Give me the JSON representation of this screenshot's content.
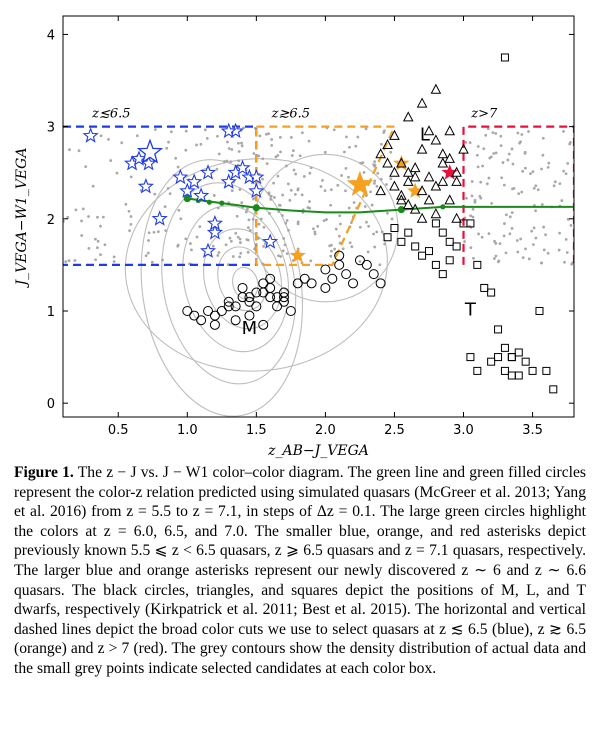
{
  "chart_data": {
    "type": "scatter",
    "xlabel": "z_AB−J_VEGA",
    "ylabel": "J_VEGA−W1_VEGA",
    "xlim": [
      0.1,
      3.8
    ],
    "ylim": [
      -0.15,
      4.2
    ],
    "xticks": [
      "0.5",
      "1.0",
      "1.5",
      "2.0",
      "2.5",
      "3.0",
      "3.5"
    ],
    "yticks": [
      "0",
      "1",
      "2",
      "3",
      "4"
    ],
    "box_labels": [
      {
        "text": "z≲6.5",
        "x": 0.45,
        "y": 3.1
      },
      {
        "text": "z≳6.5",
        "x": 1.75,
        "y": 3.1
      },
      {
        "text": "z>7",
        "x": 3.15,
        "y": 3.1
      }
    ],
    "dwarf_labels": [
      {
        "text": "L",
        "x": 2.72,
        "y": 2.85
      },
      {
        "text": "M",
        "x": 1.45,
        "y": 0.75
      },
      {
        "text": "T",
        "x": 3.05,
        "y": 0.95
      }
    ],
    "color_cuts": [
      {
        "name": "blue",
        "color": "#1f3be8",
        "points": [
          [
            0.1,
            3.0
          ],
          [
            1.5,
            3.0
          ],
          [
            1.5,
            1.5
          ],
          [
            0.1,
            1.5
          ]
        ]
      },
      {
        "name": "orange",
        "color": "#f5a020",
        "points": [
          [
            1.5,
            3.0
          ],
          [
            2.5,
            3.0
          ],
          [
            2.05,
            1.5
          ],
          [
            1.5,
            1.5
          ],
          [
            1.5,
            3.0
          ]
        ]
      },
      {
        "name": "red",
        "color": "#e8103a",
        "points": [
          [
            3.0,
            1.5
          ],
          [
            3.0,
            3.0
          ],
          [
            3.8,
            3.0
          ],
          [
            3.8,
            1.5
          ]
        ]
      }
    ],
    "color_z_relation": {
      "color": "#1a8a1a",
      "line": [
        [
          1.0,
          2.22
        ],
        [
          1.1,
          2.2
        ],
        [
          1.25,
          2.17
        ],
        [
          1.5,
          2.12
        ],
        [
          1.75,
          2.09
        ],
        [
          2.0,
          2.07
        ],
        [
          2.25,
          2.07
        ],
        [
          2.55,
          2.1
        ],
        [
          2.85,
          2.13
        ],
        [
          3.2,
          2.13
        ],
        [
          3.8,
          2.13
        ]
      ],
      "points": [
        [
          1.0,
          2.22
        ],
        [
          1.08,
          2.2
        ],
        [
          1.16,
          2.18
        ],
        [
          1.25,
          2.17
        ],
        [
          1.5,
          2.12
        ],
        [
          2.55,
          2.1
        ],
        [
          2.85,
          2.13
        ]
      ],
      "large_points": [
        [
          1.0,
          2.22
        ],
        [
          1.5,
          2.12
        ],
        [
          2.55,
          2.1
        ]
      ]
    },
    "series": [
      {
        "name": "known z<6.5 quasars",
        "marker": "star",
        "color": "#1f3be8",
        "x": [
          0.3,
          0.6,
          0.65,
          0.7,
          0.72,
          0.8,
          1.0,
          1.05,
          1.1,
          1.15,
          1.2,
          1.3,
          1.35,
          1.4,
          1.45,
          1.5,
          1.35,
          1.6,
          1.2,
          1.15,
          0.95,
          1.3,
          1.5
        ],
        "y": [
          2.9,
          2.6,
          2.65,
          2.35,
          2.6,
          2.0,
          2.3,
          2.4,
          2.25,
          2.5,
          1.85,
          2.4,
          2.5,
          2.55,
          2.45,
          2.45,
          2.95,
          1.75,
          1.95,
          1.65,
          2.45,
          2.95,
          2.3
        ]
      },
      {
        "name": "known z>=6.5 quasars",
        "marker": "star",
        "color": "#f5a020",
        "x": [
          1.8,
          2.55,
          2.65
        ],
        "y": [
          1.6,
          2.6,
          2.3
        ]
      },
      {
        "name": "known z=7.1 quasar",
        "marker": "star",
        "color": "#e8103a",
        "x": [
          2.9
        ],
        "y": [
          2.5
        ]
      },
      {
        "name": "new z~6 quasar",
        "marker": "bigstar",
        "color": "#1f3be8",
        "x": [
          0.73
        ],
        "y": [
          2.72
        ]
      },
      {
        "name": "new z~6.6 quasar",
        "marker": "bigstar",
        "color": "#f5a020",
        "x": [
          2.25
        ],
        "y": [
          2.37
        ]
      },
      {
        "name": "M dwarfs",
        "marker": "circle",
        "color": "#000000",
        "x": [
          1.25,
          1.3,
          1.35,
          1.4,
          1.45,
          1.5,
          1.55,
          1.6,
          1.65,
          1.7,
          1.75,
          1.45,
          1.35,
          1.2,
          1.15,
          1.0,
          1.05,
          1.1,
          1.55,
          1.6,
          1.65,
          1.7,
          1.45,
          1.3,
          1.2,
          1.8,
          1.85,
          1.9,
          2.0,
          2.05,
          2.1,
          2.15,
          2.2,
          2.25,
          2.3,
          2.35,
          2.4,
          1.5,
          1.4,
          1.6,
          1.7,
          1.55,
          2.1,
          2.0
        ],
        "y": [
          1.0,
          1.1,
          1.05,
          1.15,
          1.1,
          1.05,
          1.2,
          1.25,
          1.15,
          1.1,
          1.0,
          0.95,
          0.9,
          0.85,
          1.0,
          1.0,
          0.95,
          0.9,
          1.3,
          1.15,
          1.05,
          1.2,
          1.15,
          1.05,
          0.95,
          1.3,
          1.35,
          1.3,
          1.45,
          1.35,
          1.5,
          1.4,
          1.3,
          1.55,
          1.5,
          1.4,
          1.3,
          1.2,
          1.25,
          1.35,
          1.15,
          0.85,
          1.6,
          1.25
        ]
      },
      {
        "name": "L dwarfs",
        "marker": "triangle",
        "color": "#000000",
        "x": [
          2.4,
          2.5,
          2.55,
          2.6,
          2.65,
          2.7,
          2.75,
          2.8,
          2.85,
          2.9,
          2.95,
          2.45,
          2.5,
          2.6,
          2.7,
          2.75,
          2.8,
          2.85,
          2.55,
          2.65,
          2.9,
          2.95,
          2.7,
          2.8,
          2.6,
          2.5,
          2.4,
          2.55,
          2.65,
          2.75,
          2.85,
          2.95,
          3.0,
          2.7,
          2.8,
          2.6,
          2.45,
          2.9
        ],
        "y": [
          2.7,
          2.5,
          2.6,
          2.4,
          2.55,
          2.3,
          2.45,
          2.35,
          2.6,
          2.2,
          2.4,
          2.8,
          2.9,
          3.1,
          2.75,
          2.95,
          2.85,
          2.7,
          2.2,
          2.1,
          2.65,
          2.0,
          3.25,
          3.4,
          2.5,
          2.35,
          2.3,
          2.25,
          2.45,
          2.2,
          2.4,
          2.5,
          2.75,
          2.0,
          2.05,
          2.15,
          2.6,
          2.95
        ]
      },
      {
        "name": "T dwarfs",
        "marker": "square",
        "color": "#000000",
        "x": [
          2.45,
          2.5,
          2.55,
          2.6,
          2.65,
          2.7,
          2.75,
          2.8,
          2.85,
          2.9,
          2.95,
          3.0,
          3.05,
          3.1,
          3.15,
          3.2,
          3.25,
          3.3,
          3.35,
          3.4,
          3.45,
          3.3,
          3.25,
          3.35,
          3.4,
          3.5,
          3.55,
          3.6,
          3.65,
          3.3,
          3.35,
          3.2,
          3.1,
          3.05,
          2.8,
          2.9,
          2.85
        ],
        "y": [
          1.8,
          1.9,
          1.75,
          1.85,
          1.7,
          1.6,
          1.65,
          1.5,
          1.85,
          1.75,
          1.7,
          1.95,
          1.95,
          1.5,
          1.25,
          1.2,
          0.8,
          0.6,
          0.5,
          0.55,
          0.45,
          0.35,
          0.5,
          0.3,
          0.3,
          0.35,
          1.0,
          0.35,
          0.15,
          3.75,
          0.5,
          0.45,
          0.35,
          0.5,
          1.95,
          1.55,
          1.4
        ]
      }
    ]
  },
  "caption": {
    "label": "Figure 1.",
    "text": "The z − J vs. J − W1 color–color diagram. The green line and green filled circles represent the color-z relation predicted using simulated quasars (McGreer et al. 2013; Yang et al. 2016) from z = 5.5 to z = 7.1, in steps of Δz = 0.1. The large green circles highlight the colors at z = 6.0, 6.5, and 7.0. The smaller blue, orange, and red asterisks depict previously known 5.5 ⩽ z < 6.5 quasars, z ⩾ 6.5 quasars and z = 7.1 quasars, respectively. The larger blue and orange asterisks represent our newly discovered z ∼ 6 and z ∼ 6.6 quasars. The black circles, triangles, and squares depict the positions of M, L, and T dwarfs, respectively (Kirkpatrick et al. 2011; Best et al. 2015). The horizontal and vertical dashed lines depict the broad color cuts we use to select quasars at z ≲ 6.5 (blue), z ≳ 6.5 (orange) and z > 7 (red). The grey contours show the density distribution of actual data and the small grey points indicate selected candidates at each color box."
  }
}
